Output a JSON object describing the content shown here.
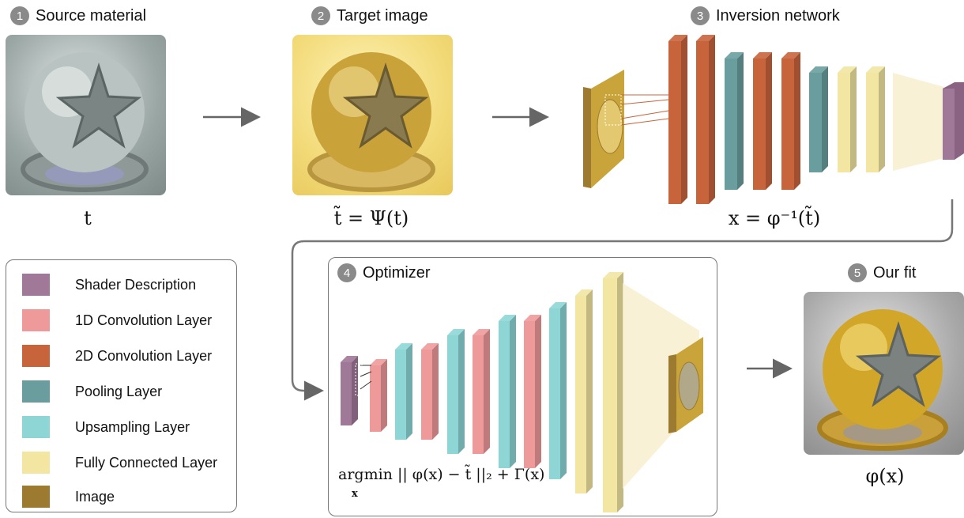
{
  "steps": [
    {
      "num": "1",
      "label": "Source material"
    },
    {
      "num": "2",
      "label": "Target image"
    },
    {
      "num": "3",
      "label": "Inversion network"
    },
    {
      "num": "4",
      "label": "Optimizer"
    },
    {
      "num": "5",
      "label": "Our fit"
    }
  ],
  "math": {
    "source": "t",
    "target": "t̃ = Ψ(t)",
    "inversion": "x = φ⁻¹(t̃)",
    "fit": "φ(x)",
    "objective": "argmin || φ(x) − t̃ ||₂ + Γ(x)",
    "objective_sub": "x"
  },
  "legend": [
    {
      "label": "Shader Description",
      "color": "#a07898"
    },
    {
      "label": "1D Convolution Layer",
      "color": "#ef9a9a"
    },
    {
      "label": "2D Convolution Layer",
      "color": "#c8643c"
    },
    {
      "label": "Pooling Layer",
      "color": "#6a9e9e"
    },
    {
      "label": "Upsampling Layer",
      "color": "#8ed6d6"
    },
    {
      "label": "Fully Connected Layer",
      "color": "#f2e6a2"
    },
    {
      "label": "Image",
      "color": "#9c7a30"
    }
  ]
}
